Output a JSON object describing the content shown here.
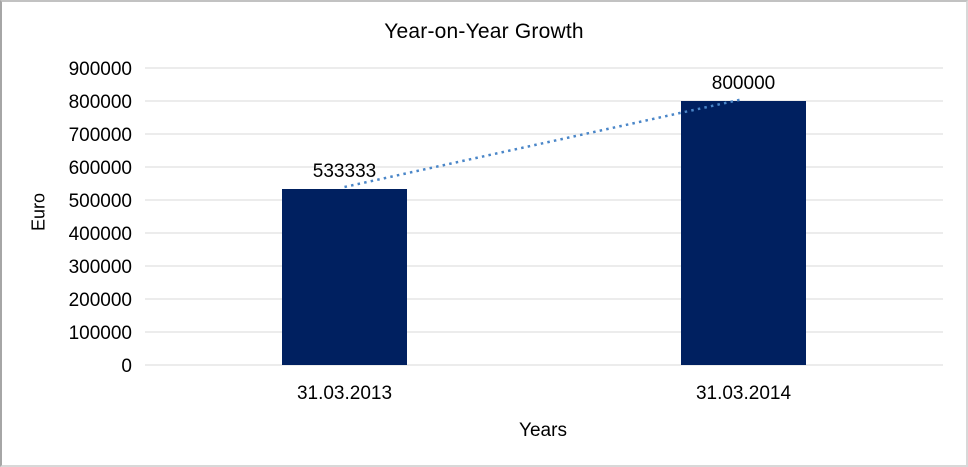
{
  "chart_data": {
    "type": "bar",
    "title": "Year-on-Year Growth",
    "xlabel": "Years",
    "ylabel": "Euro",
    "categories": [
      "31.03.2013",
      "31.03.2014"
    ],
    "values": [
      533333,
      800000
    ],
    "data_labels": [
      "533333",
      "800000"
    ],
    "ylim": [
      0,
      900000
    ],
    "ytick_step": 100000,
    "ytick_labels": [
      "0",
      "100000",
      "200000",
      "300000",
      "400000",
      "500000",
      "600000",
      "700000",
      "800000",
      "900000"
    ],
    "grid": "horizontal-only",
    "legend": "none",
    "trendline": {
      "style": "dotted",
      "connects_values": [
        533333,
        800000
      ]
    },
    "colors": {
      "bar": "#002060",
      "trendline": "#4a86c8",
      "gridline": "#d9d9d9",
      "text": "#000000",
      "background": "#ffffff"
    }
  }
}
